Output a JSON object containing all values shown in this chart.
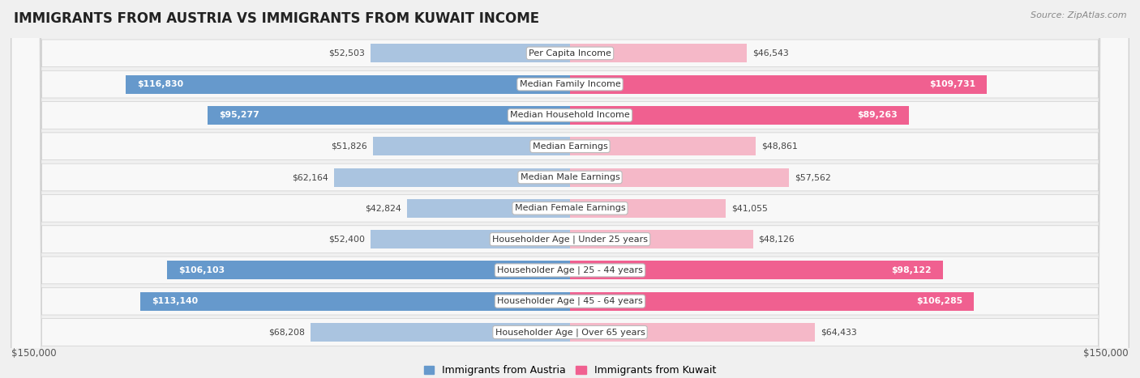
{
  "title": "IMMIGRANTS FROM AUSTRIA VS IMMIGRANTS FROM KUWAIT INCOME",
  "source": "Source: ZipAtlas.com",
  "categories": [
    "Per Capita Income",
    "Median Family Income",
    "Median Household Income",
    "Median Earnings",
    "Median Male Earnings",
    "Median Female Earnings",
    "Householder Age | Under 25 years",
    "Householder Age | 25 - 44 years",
    "Householder Age | 45 - 64 years",
    "Householder Age | Over 65 years"
  ],
  "austria_values": [
    52503,
    116830,
    95277,
    51826,
    62164,
    42824,
    52400,
    106103,
    113140,
    68208
  ],
  "kuwait_values": [
    46543,
    109731,
    89263,
    48861,
    57562,
    41055,
    48126,
    98122,
    106285,
    64433
  ],
  "austria_labels": [
    "$52,503",
    "$116,830",
    "$95,277",
    "$51,826",
    "$62,164",
    "$42,824",
    "$52,400",
    "$106,103",
    "$113,140",
    "$68,208"
  ],
  "kuwait_labels": [
    "$46,543",
    "$109,731",
    "$89,263",
    "$48,861",
    "$57,562",
    "$41,055",
    "$48,126",
    "$98,122",
    "$106,285",
    "$64,433"
  ],
  "austria_color_light": "#aac4e0",
  "austria_color_dark": "#6699cc",
  "kuwait_color_light": "#f5b8c8",
  "kuwait_color_dark": "#f06090",
  "austria_label_inside": [
    false,
    true,
    true,
    false,
    false,
    false,
    false,
    true,
    true,
    false
  ],
  "kuwait_label_inside": [
    false,
    true,
    true,
    false,
    false,
    false,
    false,
    true,
    true,
    false
  ],
  "max_value": 150000,
  "legend_austria": "Immigrants from Austria",
  "legend_kuwait": "Immigrants from Kuwait",
  "bg_color": "#f0f0f0",
  "row_bg_color": "#f8f8f8",
  "row_border_color": "#d0d0d0"
}
